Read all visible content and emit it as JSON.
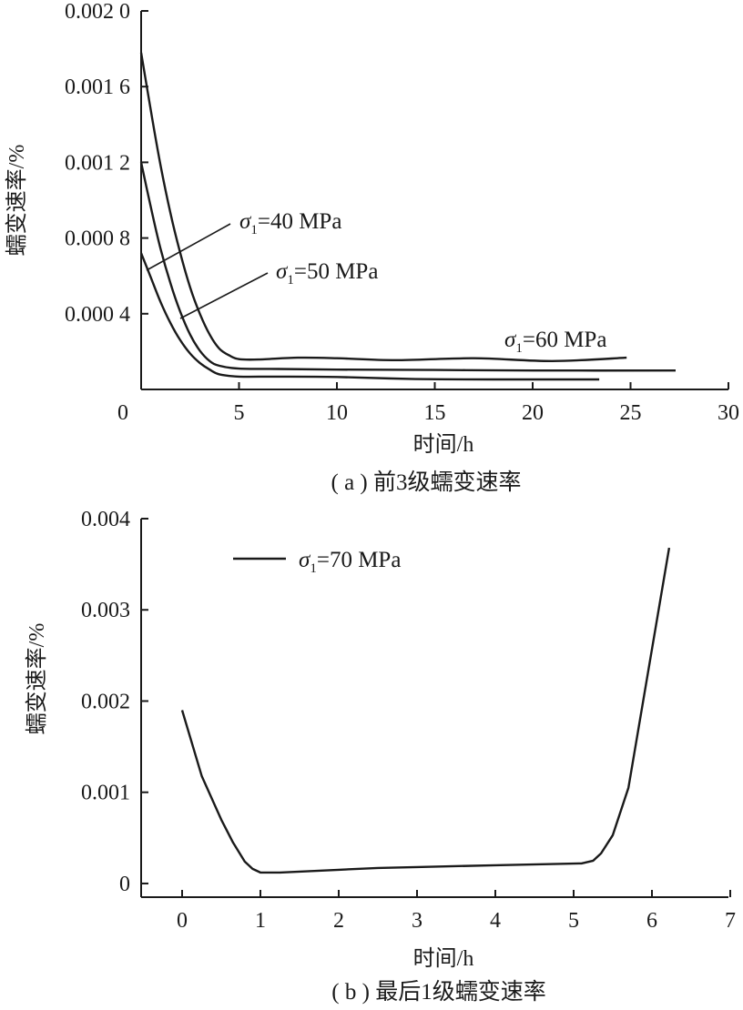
{
  "chart_data": [
    {
      "type": "line",
      "caption": "( a ) 前3级蠕变速率",
      "xlabel": "时间/h",
      "ylabel": "蠕变速率/%",
      "xlim": [
        0,
        30
      ],
      "ylim": [
        0,
        0.002
      ],
      "xticks": [
        0,
        5,
        10,
        15,
        20,
        25,
        30
      ],
      "xtick_labels": [
        "0",
        "5",
        "10",
        "15",
        "20",
        "25",
        "30"
      ],
      "yticks": [
        0,
        0.0004,
        0.0008,
        0.0012,
        0.0016,
        0.002
      ],
      "ytick_labels": [
        "0",
        "0.000 4",
        "0.000 8",
        "0.001 2",
        "0.001 6",
        "0.002 0"
      ],
      "series": [
        {
          "name": "σ1=40 MPa",
          "x": [
            0,
            0.5,
            1,
            1.5,
            2,
            2.5,
            3,
            3.5,
            4,
            5,
            7,
            10,
            14,
            18,
            23.4
          ],
          "y": [
            0.00072,
            0.00059,
            0.00046,
            0.00035,
            0.00026,
            0.00019,
            0.00014,
            0.000105,
            8e-05,
            6.8e-05,
            6.8e-05,
            6.6e-05,
            5.5e-05,
            5.3e-05,
            5.3e-05
          ]
        },
        {
          "name": "σ1=50 MPa",
          "x": [
            0,
            0.5,
            1,
            1.5,
            2,
            2.5,
            3,
            3.5,
            4,
            5,
            7,
            10,
            15,
            20,
            27.3
          ],
          "y": [
            0.0012,
            0.00096,
            0.00074,
            0.00056,
            0.00041,
            0.00029,
            0.000205,
            0.00015,
            0.000125,
            0.00011,
            0.000108,
            0.000105,
            0.000103,
            0.0001,
            0.0001
          ]
        },
        {
          "name": "σ1=60 MPa",
          "x": [
            0,
            0.5,
            1,
            1.5,
            2,
            2.5,
            3,
            3.5,
            4,
            4.5,
            5,
            6,
            8,
            10,
            13,
            17,
            21,
            24.8
          ],
          "y": [
            0.00178,
            0.00147,
            0.00118,
            0.00093,
            0.00072,
            0.00054,
            0.0004,
            0.00029,
            0.000215,
            0.00018,
            0.00016,
            0.000158,
            0.000168,
            0.000165,
            0.000155,
            0.000165,
            0.00015,
            0.000168
          ]
        }
      ],
      "annotations": [
        {
          "sigma": "σ",
          "sub": "1",
          "text": "=40 MPa"
        },
        {
          "sigma": "σ",
          "sub": "1",
          "text": "=50 MPa"
        },
        {
          "sigma": "σ",
          "sub": "1",
          "text": "=60 MPa"
        }
      ]
    },
    {
      "type": "line",
      "caption": "( b ) 最后1级蠕变速率",
      "xlabel": "时间/h",
      "ylabel": "蠕变速率/%",
      "xlim": [
        -0.5,
        7
      ],
      "ylim": [
        -0.00015,
        0.004
      ],
      "xticks": [
        0,
        1,
        2,
        3,
        4,
        5,
        6,
        7
      ],
      "xtick_labels": [
        "0",
        "1",
        "2",
        "3",
        "4",
        "5",
        "6",
        "7"
      ],
      "yticks": [
        0,
        0.001,
        0.002,
        0.003,
        0.004
      ],
      "ytick_labels": [
        "0",
        "0.001",
        "0.002",
        "0.003",
        "0.004"
      ],
      "legend": {
        "sigma": "σ",
        "sub": "1",
        "text": "=70 MPa",
        "placement": "top-left"
      },
      "series": [
        {
          "name": "σ1=70 MPa",
          "x": [
            0,
            0.25,
            0.5,
            0.65,
            0.8,
            0.9,
            1.0,
            1.25,
            2.0,
            2.5,
            3.0,
            4.0,
            5.1,
            5.25,
            5.35,
            5.5,
            5.7,
            6.22
          ],
          "y": [
            0.0019,
            0.00118,
            0.0007,
            0.00045,
            0.00024,
            0.00016,
            0.00012,
            0.00012,
            0.00015,
            0.00017,
            0.00018,
            0.0002,
            0.00022,
            0.00025,
            0.00033,
            0.00053,
            0.00105,
            0.00368
          ]
        }
      ]
    }
  ]
}
